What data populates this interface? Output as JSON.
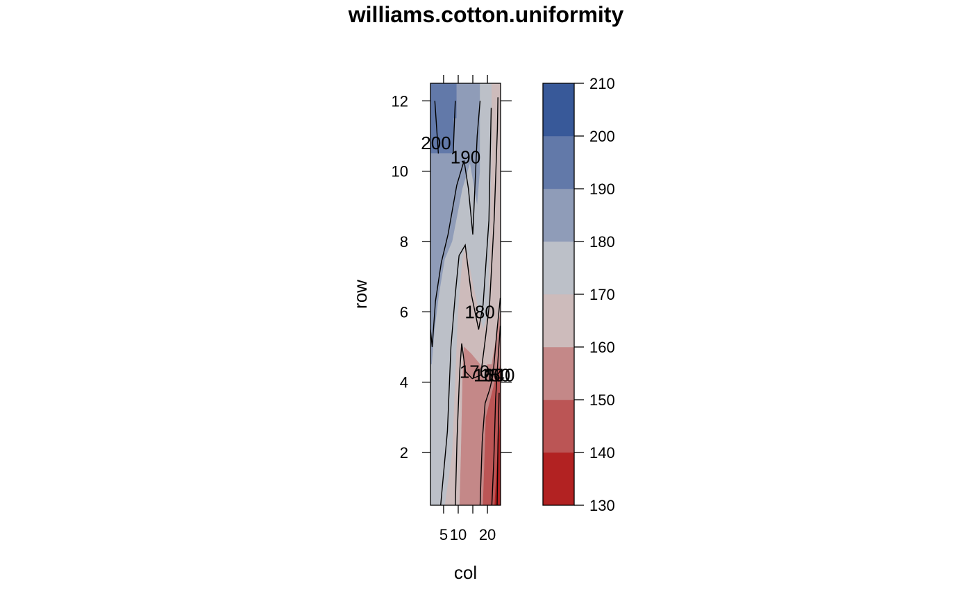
{
  "chart_data": {
    "type": "heatmap",
    "title": "williams.cotton.uniformity",
    "xlabel": "col",
    "ylabel": "row",
    "xlim": [
      0.5,
      24.5
    ],
    "ylim": [
      0.5,
      12.5
    ],
    "x_ticks": [
      "5",
      "10",
      "20"
    ],
    "x_tick_values": [
      5,
      10,
      20
    ],
    "y_ticks": [
      "2",
      "4",
      "6",
      "8",
      "10",
      "12"
    ],
    "y_tick_values": [
      2,
      4,
      6,
      8,
      10,
      12
    ],
    "colorkey": {
      "breaks": [
        130,
        140,
        150,
        160,
        170,
        180,
        190,
        200,
        210
      ],
      "labels": [
        "130",
        "140",
        "150",
        "160",
        "170",
        "180",
        "190",
        "200",
        "210"
      ],
      "colors": [
        "#B22222",
        "#BB5555",
        "#C48888",
        "#CDBBBB",
        "#BCC0C8",
        "#8F9CB8",
        "#6279A9",
        "#385999"
      ]
    },
    "level_regions": [
      {
        "level": 200,
        "polygon": [
          [
            0.5,
            12.5
          ],
          [
            9.5,
            12.5
          ],
          [
            9.5,
            11.5
          ],
          [
            8.5,
            11.5
          ],
          [
            8.5,
            10.5
          ],
          [
            0.5,
            10.5
          ]
        ]
      },
      {
        "level": 190,
        "polygon": [
          [
            9.5,
            12.5
          ],
          [
            17.5,
            12.5
          ],
          [
            17.5,
            10
          ],
          [
            16.5,
            9
          ],
          [
            14,
            10.2
          ],
          [
            11.5,
            9.5
          ],
          [
            8,
            8
          ],
          [
            5.5,
            7.5
          ],
          [
            3.5,
            6.5
          ],
          [
            2,
            5.5
          ],
          [
            1,
            4.5
          ],
          [
            0.5,
            4.5
          ],
          [
            0.5,
            10.5
          ],
          [
            8.5,
            10.5
          ],
          [
            8.5,
            11.5
          ],
          [
            9.5,
            11.5
          ]
        ]
      },
      {
        "level": 180,
        "polygon": [
          [
            17.5,
            12.5
          ],
          [
            21.5,
            12.5
          ],
          [
            21.5,
            11
          ],
          [
            20.5,
            6
          ],
          [
            18.5,
            5.5
          ],
          [
            17,
            6
          ],
          [
            14.5,
            7
          ],
          [
            12.5,
            7.9
          ],
          [
            11.5,
            7.5
          ],
          [
            10,
            6
          ],
          [
            9,
            4
          ],
          [
            8,
            2
          ],
          [
            5.5,
            0.5
          ],
          [
            0.5,
            0.5
          ],
          [
            0.5,
            4.5
          ],
          [
            1,
            4.5
          ],
          [
            2,
            5.5
          ],
          [
            3.5,
            6.5
          ],
          [
            5.5,
            7.5
          ],
          [
            8,
            8
          ],
          [
            11.5,
            9.5
          ],
          [
            14,
            10.2
          ],
          [
            16.5,
            9
          ],
          [
            17.5,
            10
          ]
        ]
      },
      {
        "level": 170,
        "polygon": [
          [
            21.5,
            12.5
          ],
          [
            24.5,
            12.5
          ],
          [
            24.5,
            6
          ],
          [
            22.5,
            5
          ],
          [
            21.5,
            4.5
          ],
          [
            20,
            4.5
          ],
          [
            19,
            4
          ],
          [
            17.5,
            4.5
          ],
          [
            14.5,
            4.8
          ],
          [
            12,
            5
          ],
          [
            11.5,
            4
          ],
          [
            11,
            2
          ],
          [
            10.5,
            0.5
          ],
          [
            5.5,
            0.5
          ],
          [
            8,
            2
          ],
          [
            9,
            4
          ],
          [
            10,
            6
          ],
          [
            11.5,
            7.5
          ],
          [
            12.5,
            7.9
          ],
          [
            14.5,
            7
          ],
          [
            17,
            6
          ],
          [
            18.5,
            5.5
          ],
          [
            20.5,
            6
          ],
          [
            21.5,
            11
          ]
        ]
      },
      {
        "level": 160,
        "polygon": [
          [
            10.5,
            0.5
          ],
          [
            11,
            2
          ],
          [
            11.5,
            4
          ],
          [
            12,
            5
          ],
          [
            14.5,
            4.8
          ],
          [
            17.5,
            4.5
          ],
          [
            19,
            4
          ],
          [
            20,
            4.5
          ],
          [
            21.5,
            4.5
          ],
          [
            22.5,
            5
          ],
          [
            24.5,
            6
          ],
          [
            24.5,
            4.5
          ],
          [
            22.5,
            4
          ],
          [
            21,
            3.5
          ],
          [
            19.5,
            3
          ],
          [
            18.5,
            0.5
          ]
        ]
      },
      {
        "level": 150,
        "polygon": [
          [
            18.5,
            0.5
          ],
          [
            19.5,
            3
          ],
          [
            21,
            3.5
          ],
          [
            22.5,
            4
          ],
          [
            24.5,
            4.5
          ],
          [
            24.5,
            3
          ],
          [
            23.5,
            2
          ],
          [
            22.5,
            0.5
          ]
        ]
      },
      {
        "level": 140,
        "polygon": [
          [
            22.5,
            0.5
          ],
          [
            23.5,
            2
          ],
          [
            24.5,
            3
          ],
          [
            24.5,
            0.5
          ]
        ]
      }
    ],
    "contour_lines": [
      {
        "level": 200,
        "points": [
          [
            2,
            12
          ],
          [
            2.8,
            11
          ],
          [
            3.2,
            10.5
          ]
        ]
      },
      {
        "level": 200,
        "points": [
          [
            9,
            12
          ],
          [
            8.6,
            11.2
          ],
          [
            8.3,
            10.5
          ]
        ]
      },
      {
        "level": 190,
        "points": [
          [
            0.5,
            5.5
          ],
          [
            1.1,
            5
          ],
          [
            2.2,
            6.3
          ],
          [
            4.2,
            7.4
          ],
          [
            6.5,
            8.2
          ],
          [
            9.5,
            9.6
          ],
          [
            12,
            10.3
          ],
          [
            13.5,
            9.5
          ],
          [
            15,
            8.2
          ],
          [
            16.5,
            11
          ],
          [
            17.5,
            12
          ]
        ]
      },
      {
        "level": 180,
        "points": [
          [
            4,
            0.5
          ],
          [
            6.3,
            2.6
          ],
          [
            7.5,
            5
          ],
          [
            9,
            6.5
          ],
          [
            10.3,
            7.6
          ],
          [
            12.4,
            7.9
          ],
          [
            14.5,
            6.5
          ],
          [
            17,
            5.5
          ],
          [
            18.5,
            6.2
          ],
          [
            20.5,
            8.6
          ],
          [
            21.3,
            11.8
          ]
        ]
      },
      {
        "level": 170,
        "points": [
          [
            9,
            0.5
          ],
          [
            9.6,
            2.4
          ],
          [
            10.5,
            4.3
          ],
          [
            11.2,
            5.1
          ],
          [
            12.5,
            4.3
          ],
          [
            14.8,
            4.1
          ],
          [
            17.7,
            4.2
          ],
          [
            19.4,
            5.3
          ],
          [
            20.8,
            6.3
          ],
          [
            22.3,
            8.6
          ],
          [
            23.4,
            11.2
          ],
          [
            23.6,
            12.1
          ]
        ]
      },
      {
        "level": 160,
        "points": [
          [
            17.5,
            0.5
          ],
          [
            18.2,
            2.3
          ],
          [
            19.2,
            3.4
          ],
          [
            20.8,
            3.8
          ],
          [
            21.9,
            4.2
          ],
          [
            23.2,
            5.4
          ],
          [
            24.4,
            6.4
          ]
        ]
      },
      {
        "level": 150,
        "points": [
          [
            21.5,
            0.5
          ],
          [
            22.2,
            1.8
          ],
          [
            22.8,
            3.5
          ],
          [
            23.5,
            4.5
          ],
          [
            24.4,
            5.6
          ]
        ]
      },
      {
        "level": 140,
        "points": [
          [
            23.3,
            0.5
          ],
          [
            23.6,
            2.2
          ],
          [
            24,
            3.7
          ]
        ]
      }
    ],
    "contour_labels": [
      {
        "text": "200",
        "x": 2.4,
        "y": 10.8
      },
      {
        "text": "190",
        "x": 12.5,
        "y": 10.4
      },
      {
        "text": "180",
        "x": 17.4,
        "y": 6
      },
      {
        "text": "170",
        "x": 15.6,
        "y": 4.3
      },
      {
        "text": "160",
        "x": 20.4,
        "y": 4.2
      },
      {
        "text": "150",
        "x": 22.7,
        "y": 4.2
      },
      {
        "text": "140",
        "x": 24.2,
        "y": 4.2
      }
    ]
  }
}
